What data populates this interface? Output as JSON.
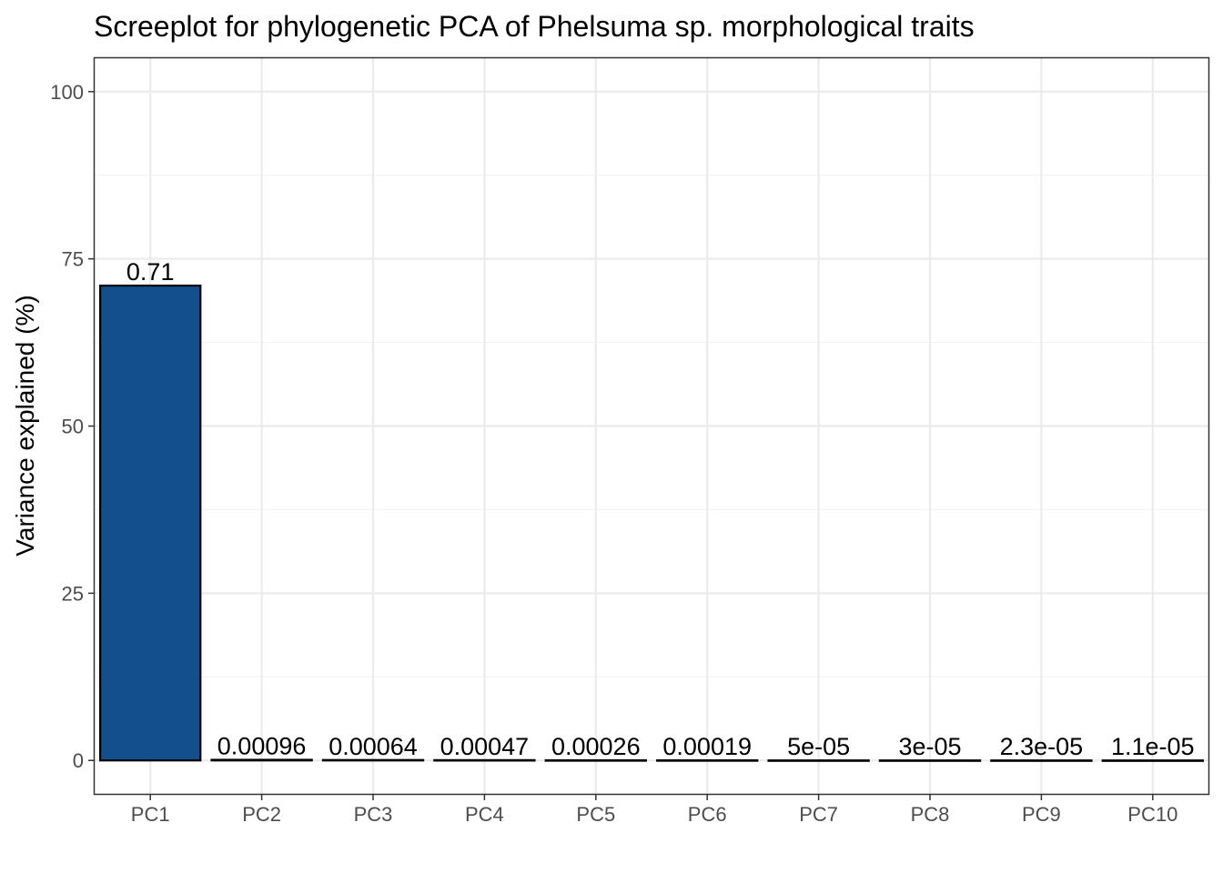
{
  "chart_data": {
    "type": "bar",
    "title": "Screeplot for phylogenetic PCA of Phelsuma sp. morphological traits",
    "xlabel": "",
    "ylabel": "Variance explained (%)",
    "categories": [
      "PC1",
      "PC2",
      "PC3",
      "PC4",
      "PC5",
      "PC6",
      "PC7",
      "PC8",
      "PC9",
      "PC10"
    ],
    "values": [
      71,
      0.096,
      0.064,
      0.047,
      0.026,
      0.019,
      0.005,
      0.003,
      0.0023,
      0.0011
    ],
    "data_labels": [
      "0.71",
      "0.00096",
      "0.00064",
      "0.00047",
      "0.00026",
      "0.00019",
      "5e-05",
      "3e-05",
      "2.3e-05",
      "1.1e-05"
    ],
    "ylim": [
      -5,
      105
    ],
    "yticks": [
      0,
      25,
      50,
      75,
      100
    ],
    "ytick_labels": [
      "0",
      "25",
      "50",
      "75",
      "100"
    ],
    "grid": true,
    "legend": "none",
    "colors": {
      "bar_fill": "#124f8c",
      "bar_stroke": "#000000",
      "grid_major": "#ebebeb",
      "grid_minor": "#f3f3f3",
      "panel_border": "#333333",
      "tick_text": "#4d4d4d"
    }
  }
}
